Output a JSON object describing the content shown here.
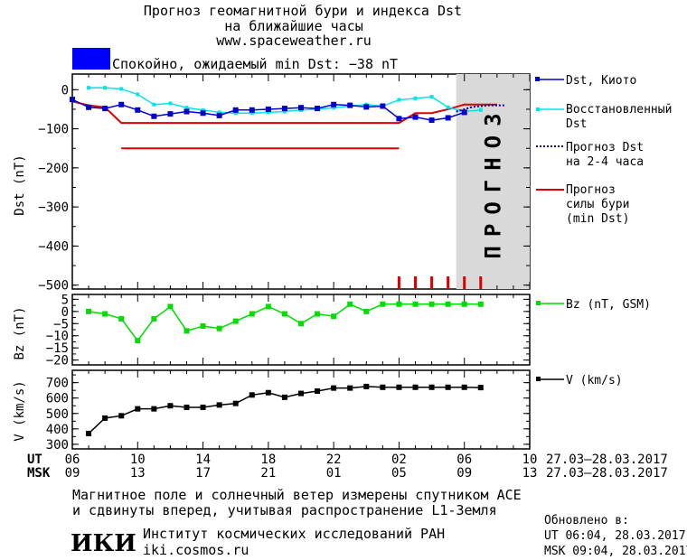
{
  "header": {
    "title_line1": "Прогноз геомагнитной бури и индекса Dst",
    "title_line2": "на ближайшие часы",
    "site": "www.spaceweather.ru",
    "status_text": "Спокойно, ожидаемый min Dst: −38 nT",
    "status_color": "#0000ff"
  },
  "legend": {
    "dst_kyoto": "Dst, Киото",
    "restored_1": "Восстановленный",
    "restored_2": "Dst",
    "forecast_1": "Прогноз Dst",
    "forecast_2": "на 2-4 часа",
    "storm_1": "Прогноз",
    "storm_2": "силы бури",
    "storm_3": "(min Dst)",
    "bz": "Bz (nT, GSM)",
    "v": "V (km/s)"
  },
  "forecast_label": "ПРОГНОЗ",
  "time_axis": {
    "ut_label": "UT",
    "msk_label": "MSK",
    "ut_ticks": [
      "06",
      "10",
      "14",
      "18",
      "22",
      "02",
      "06",
      "10"
    ],
    "msk_ticks": [
      "09",
      "13",
      "17",
      "21",
      "01",
      "05",
      "09",
      "13"
    ],
    "ut_range": "27.03–28.03.2017",
    "msk_range": "27.03–28.03.2017"
  },
  "footer": {
    "note_1": "Магнитное поле и солнечный ветер измерены спутником ACE",
    "note_2": "и сдвинуты вперед, учитывая распространение L1-Земля",
    "logo": "ИКИ",
    "institute": "Институт космических исследований РАН",
    "institute_site": "iki.cosmos.ru",
    "updated_label": "Обновлено в:",
    "updated_ut": "UT   06:04, 28.03.2017",
    "updated_msk": "MSK 09:04, 28.03.2017"
  },
  "colors": {
    "dst": "#0000cc",
    "restored": "#00e5e5",
    "forecast": "#0000aa",
    "storm": "#dd0000",
    "bz": "#00dd00",
    "v": "#000000",
    "forecast_band": "#d9d9d9"
  },
  "chart_data": [
    {
      "type": "line",
      "ylabel": "Dst (nT)",
      "xlim": [
        6,
        34
      ],
      "ylim": [
        -510,
        40
      ],
      "yticks": [
        0,
        -100,
        -200,
        -300,
        -400,
        -500
      ],
      "forecast_start": 29.5,
      "series": [
        {
          "name": "Dst, Киото",
          "points": [
            [
              6,
              -25
            ],
            [
              7,
              -45
            ],
            [
              8,
              -48
            ],
            [
              9,
              -38
            ],
            [
              10,
              -52
            ],
            [
              11,
              -68
            ],
            [
              12,
              -62
            ],
            [
              13,
              -56
            ],
            [
              14,
              -60
            ],
            [
              15,
              -66
            ],
            [
              16,
              -52
            ],
            [
              17,
              -52
            ],
            [
              18,
              -50
            ],
            [
              19,
              -48
            ],
            [
              20,
              -46
            ],
            [
              21,
              -48
            ],
            [
              22,
              -38
            ],
            [
              23,
              -40
            ],
            [
              24,
              -44
            ],
            [
              25,
              -42
            ],
            [
              26,
              -74
            ],
            [
              27,
              -70
            ],
            [
              28,
              -78
            ],
            [
              29,
              -72
            ],
            [
              30,
              -58
            ]
          ]
        },
        {
          "name": "Восстановленный Dst",
          "points": [
            [
              7,
              5
            ],
            [
              8,
              5
            ],
            [
              9,
              2
            ],
            [
              10,
              -12
            ],
            [
              11,
              -38
            ],
            [
              12,
              -35
            ],
            [
              13,
              -46
            ],
            [
              14,
              -52
            ],
            [
              15,
              -58
            ],
            [
              16,
              -60
            ],
            [
              17,
              -60
            ],
            [
              18,
              -58
            ],
            [
              19,
              -56
            ],
            [
              20,
              -52
            ],
            [
              21,
              -50
            ],
            [
              22,
              -46
            ],
            [
              23,
              -42
            ],
            [
              24,
              -38
            ],
            [
              25,
              -42
            ],
            [
              26,
              -26
            ],
            [
              27,
              -22
            ],
            [
              28,
              -18
            ],
            [
              29,
              -45
            ],
            [
              30,
              -56
            ],
            [
              31,
              -52
            ]
          ]
        },
        {
          "name": "Прогноз Dst на 2-4 часа",
          "points": [
            [
              29.5,
              -56
            ],
            [
              30.5,
              -44
            ],
            [
              31.5,
              -40
            ],
            [
              32.5,
              -40
            ]
          ]
        },
        {
          "name": "Прогноз силы бури (min Dst)",
          "points": [
            [
              6,
              -30
            ],
            [
              7,
              -40
            ],
            [
              8,
              -45
            ],
            [
              9,
              -85
            ],
            [
              26,
              -85
            ],
            [
              27,
              -60
            ],
            [
              28,
              -60
            ],
            [
              29,
              -50
            ],
            [
              30,
              -38
            ],
            [
              31,
              -38
            ],
            [
              32,
              -38
            ]
          ]
        },
        {
          "name": "Прогноз силы бури (min Dst) уровень",
          "points": [
            [
              9,
              -150
            ],
            [
              26,
              -150
            ]
          ]
        }
      ],
      "storm_markers_x": [
        26,
        27,
        28,
        29,
        30,
        31
      ]
    },
    {
      "type": "line",
      "ylabel": "Bz (nT)",
      "xlim": [
        6,
        34
      ],
      "ylim": [
        -22,
        7
      ],
      "yticks": [
        5,
        0,
        -5,
        -10,
        -15,
        -20
      ],
      "series": [
        {
          "name": "Bz (nT, GSM)",
          "points": [
            [
              7,
              0
            ],
            [
              8,
              -1
            ],
            [
              9,
              -3
            ],
            [
              10,
              -12
            ],
            [
              11,
              -3
            ],
            [
              12,
              2
            ],
            [
              13,
              -8
            ],
            [
              14,
              -6
            ],
            [
              15,
              -7
            ],
            [
              16,
              -4
            ],
            [
              17,
              -1
            ],
            [
              18,
              2
            ],
            [
              19,
              -1
            ],
            [
              20,
              -5
            ],
            [
              21,
              -1
            ],
            [
              22,
              -2
            ],
            [
              23,
              3
            ],
            [
              24,
              0
            ],
            [
              25,
              3
            ],
            [
              26,
              3
            ],
            [
              27,
              3
            ],
            [
              28,
              3
            ],
            [
              29,
              3
            ],
            [
              30,
              3
            ],
            [
              31,
              3
            ]
          ]
        }
      ]
    },
    {
      "type": "line",
      "ylabel": "V (km/s)",
      "xlim": [
        6,
        34
      ],
      "ylim": [
        270,
        780
      ],
      "yticks": [
        700,
        600,
        500,
        400,
        300
      ],
      "series": [
        {
          "name": "V (km/s)",
          "points": [
            [
              7,
              370
            ],
            [
              8,
              470
            ],
            [
              9,
              485
            ],
            [
              10,
              530
            ],
            [
              11,
              530
            ],
            [
              12,
              550
            ],
            [
              13,
              540
            ],
            [
              14,
              540
            ],
            [
              15,
              555
            ],
            [
              16,
              565
            ],
            [
              17,
              620
            ],
            [
              18,
              635
            ],
            [
              19,
              605
            ],
            [
              20,
              630
            ],
            [
              21,
              645
            ],
            [
              22,
              665
            ],
            [
              23,
              665
            ],
            [
              24,
              675
            ],
            [
              25,
              670
            ],
            [
              26,
              670
            ],
            [
              27,
              670
            ],
            [
              28,
              670
            ],
            [
              29,
              670
            ],
            [
              30,
              670
            ],
            [
              31,
              668
            ]
          ]
        }
      ]
    }
  ]
}
